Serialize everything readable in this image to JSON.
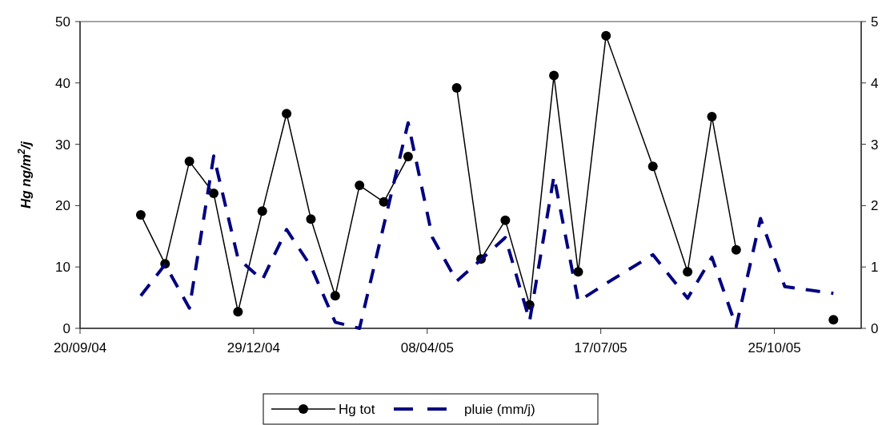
{
  "chart_data": {
    "type": "line",
    "ylabel": "Hg ng/m$^{2}$/j",
    "x": [
      "2004-10-25",
      "2004-11-08",
      "2004-11-22",
      "2004-12-06",
      "2004-12-20",
      "2005-01-03",
      "2005-01-17",
      "2005-01-31",
      "2005-02-14",
      "2005-02-28",
      "2005-03-14",
      "2005-03-28",
      "2005-04-11",
      "2005-04-25",
      "2005-05-09",
      "2005-05-23",
      "2005-06-06",
      "2005-06-20",
      "2005-07-04",
      "2005-07-20",
      "2005-08-16",
      "2005-09-05",
      "2005-09-19",
      "2005-10-03",
      "2005-10-17",
      "2005-10-31",
      "2005-11-28"
    ],
    "series": [
      {
        "name": "Hg tot",
        "color": "#000000",
        "marker": "circle",
        "line_style": "solid",
        "values": [
          18.5,
          10.5,
          27.2,
          22.0,
          2.7,
          19.1,
          35.0,
          17.8,
          5.3,
          23.3,
          20.6,
          28.0,
          null,
          39.2,
          11.3,
          17.6,
          3.8,
          41.2,
          9.2,
          47.7,
          26.4,
          9.2,
          34.5,
          12.8,
          null,
          null,
          1.4
        ]
      },
      {
        "name": "pluie (mm/j)",
        "color": "#000080",
        "axis": "y2",
        "marker": "none",
        "line_style": "dashed",
        "values": [
          0.53,
          1.04,
          0.33,
          2.81,
          1.14,
          0.79,
          1.61,
          1.01,
          0.1,
          0.0,
          1.68,
          3.35,
          1.48,
          0.77,
          1.12,
          1.48,
          0.12,
          2.48,
          0.44,
          0.73,
          1.2,
          0.49,
          1.16,
          0.03,
          1.79,
          0.68,
          0.57
        ]
      }
    ],
    "xlim": [
      "2004-09-20",
      "2005-12-14"
    ],
    "xticks": [
      {
        "value": "2004-09-20",
        "label": "20/09/04"
      },
      {
        "value": "2004-12-29",
        "label": "29/12/04"
      },
      {
        "value": "2005-04-08",
        "label": "08/04/05"
      },
      {
        "value": "2005-07-17",
        "label": "17/07/05"
      },
      {
        "value": "2005-10-25",
        "label": "25/10/05"
      }
    ],
    "ylim": [
      0,
      50
    ],
    "yticks": [
      0,
      10,
      20,
      30,
      40,
      50
    ],
    "y2lim": [
      0,
      5
    ],
    "y2ticks": [
      0,
      1,
      2,
      3,
      4,
      5
    ],
    "grid": false,
    "legend": "bottom"
  }
}
